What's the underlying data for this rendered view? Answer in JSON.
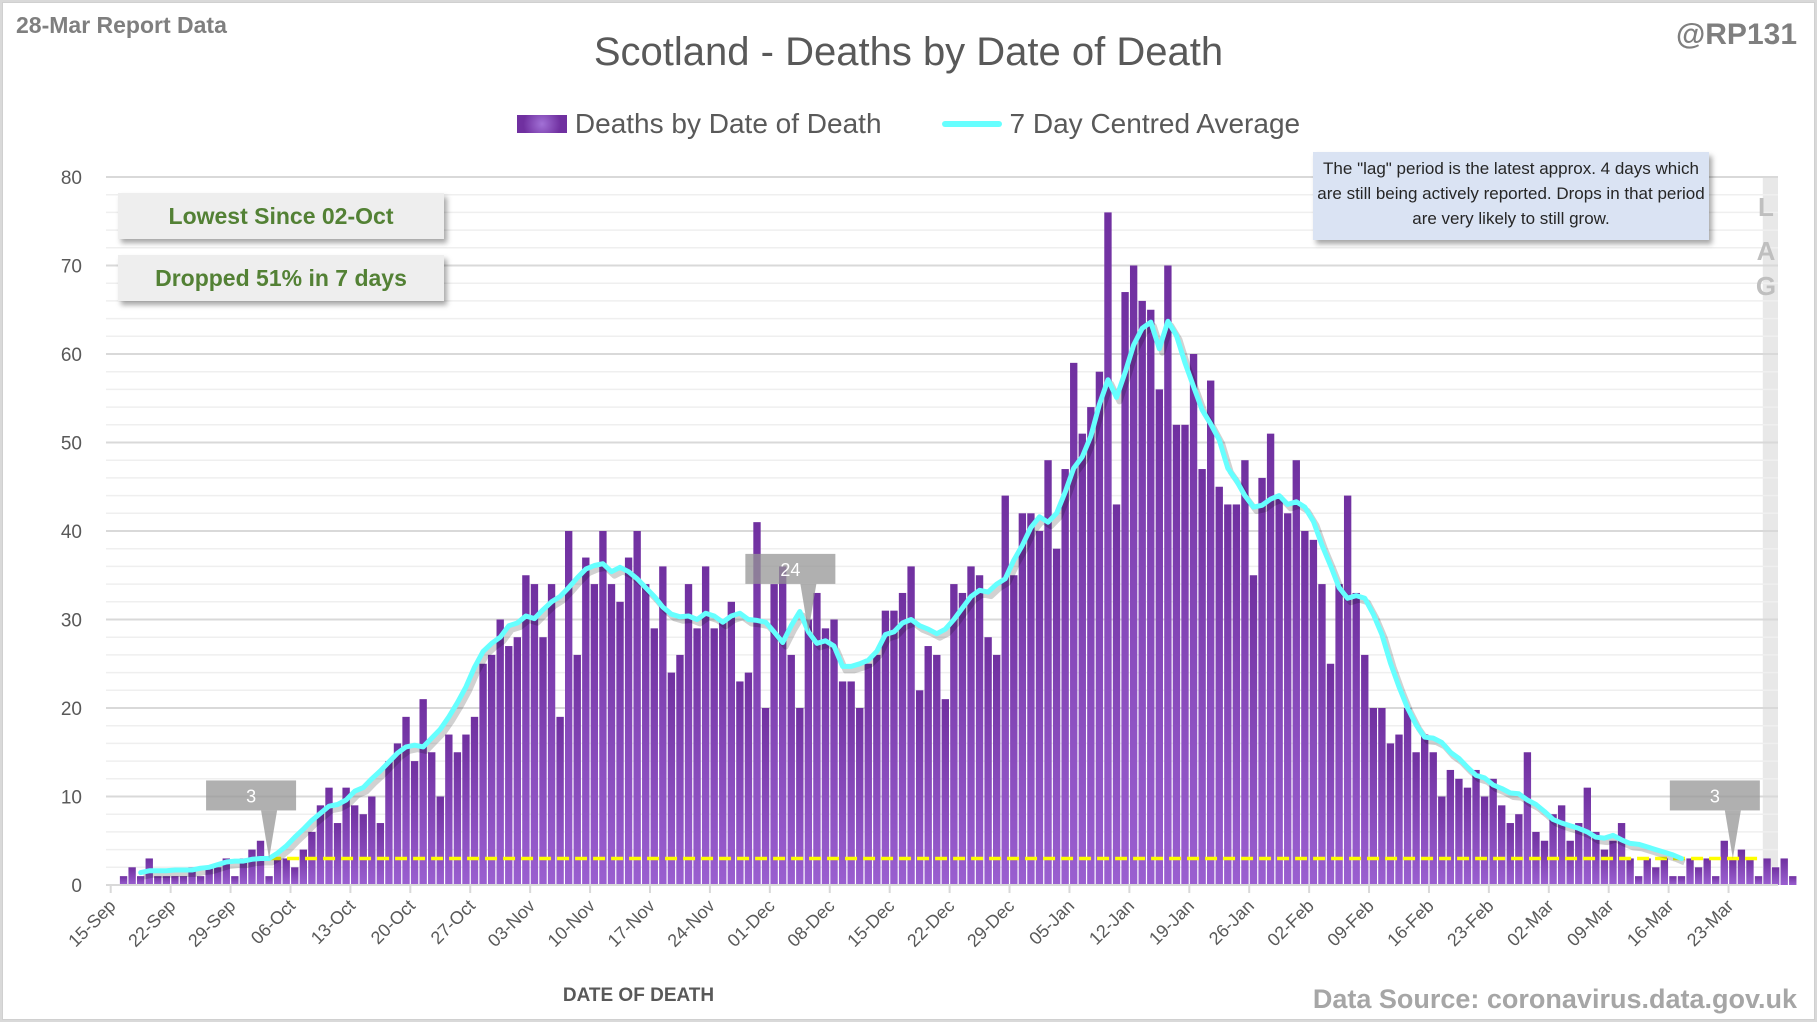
{
  "header": {
    "report_label": "28-Mar Report Data",
    "handle": "@RP131",
    "source": "Data Source: coronavirus.data.gov.uk"
  },
  "callouts": {
    "lowest": "Lowest Since 02-Oct",
    "dropped": "Dropped 51% in 7 days"
  },
  "lag": {
    "note": "The \"lag\" period is the latest approx. 4 days which are still being actively reported.  Drops in that period are very likely to still grow.",
    "letters": [
      "L",
      "A",
      "G"
    ]
  },
  "markers": [
    {
      "label": "3",
      "date_index": 18
    },
    {
      "label": "24",
      "date_index": 81
    },
    {
      "label": "3",
      "date_index": 189
    }
  ],
  "colors": {
    "bar": "#7030a0",
    "bar_light": "#9a5fd0",
    "line": "#66ffff",
    "threshold": "#ffff00",
    "lag_band": "#e8e8e8",
    "callout_text": "#538135"
  },
  "chart_data": {
    "type": "bar",
    "title": "Scotland - Deaths by Date of Death",
    "xlabel": "DATE OF DEATH",
    "ylabel": "",
    "ylim": [
      0,
      80
    ],
    "yticks": [
      0,
      10,
      20,
      30,
      40,
      50,
      60,
      70,
      80
    ],
    "grid": true,
    "legend_position": "top",
    "start_date": "15-Sep",
    "xtick_labels": [
      "15-Sep",
      "22-Sep",
      "29-Sep",
      "06-Oct",
      "13-Oct",
      "20-Oct",
      "27-Oct",
      "03-Nov",
      "10-Nov",
      "17-Nov",
      "24-Nov",
      "01-Dec",
      "08-Dec",
      "15-Dec",
      "22-Dec",
      "29-Dec",
      "05-Jan",
      "12-Jan",
      "19-Jan",
      "26-Jan",
      "02-Feb",
      "09-Feb",
      "16-Feb",
      "23-Feb",
      "02-Mar",
      "09-Mar",
      "16-Mar",
      "23-Mar"
    ],
    "threshold": 3,
    "lag_days": 4,
    "series": [
      {
        "name": "Deaths by Date of Death",
        "type": "bar",
        "values": [
          0,
          1,
          2,
          1,
          3,
          1,
          1,
          1,
          1,
          2,
          1,
          2,
          2,
          3,
          1,
          3,
          4,
          5,
          1,
          3,
          3,
          2,
          4,
          6,
          9,
          11,
          7,
          11,
          9,
          8,
          10,
          7,
          14,
          16,
          19,
          14,
          21,
          15,
          10,
          17,
          15,
          17,
          19,
          25,
          26,
          30,
          27,
          28,
          35,
          34,
          28,
          34,
          19,
          40,
          26,
          37,
          34,
          40,
          34,
          32,
          37,
          40,
          34,
          29,
          36,
          24,
          26,
          34,
          29,
          36,
          29,
          30,
          32,
          23,
          24,
          41,
          20,
          34,
          36,
          26,
          20,
          30,
          33,
          29,
          30,
          23,
          23,
          20,
          25,
          26,
          31,
          31,
          33,
          36,
          22,
          27,
          26,
          21,
          34,
          33,
          36,
          35,
          28,
          26,
          44,
          35,
          42,
          42,
          40,
          48,
          38,
          47,
          59,
          51,
          54,
          58,
          76,
          43,
          67,
          70,
          66,
          65,
          56,
          70,
          52,
          52,
          60,
          47,
          57,
          45,
          43,
          43,
          48,
          35,
          46,
          51,
          44,
          42,
          48,
          40,
          39,
          34,
          25,
          34,
          44,
          33,
          26,
          20,
          20,
          16,
          17,
          20,
          15,
          17,
          15,
          10,
          13,
          12,
          11,
          13,
          10,
          12,
          9,
          7,
          8,
          15,
          6,
          5,
          8,
          9,
          5,
          7,
          11,
          6,
          4,
          5,
          7,
          3,
          1,
          3,
          2,
          3,
          1,
          1,
          3,
          2,
          3,
          1,
          5,
          3,
          4,
          3,
          1,
          3,
          2,
          3,
          1
        ]
      },
      {
        "name": "7 Day Centred Average",
        "type": "line",
        "values": [
          null,
          null,
          null,
          1.4,
          1.6,
          1.6,
          1.6,
          1.7,
          1.7,
          1.7,
          1.9,
          2.0,
          2.3,
          2.6,
          2.7,
          2.7,
          2.9,
          3.0,
          3.0,
          3.6,
          4.4,
          5.4,
          6.3,
          7.3,
          8.1,
          8.9,
          9.1,
          9.6,
          10.6,
          11.0,
          12.0,
          12.9,
          13.9,
          14.9,
          15.6,
          15.8,
          15.6,
          16.6,
          17.6,
          19.0,
          20.6,
          22.4,
          24.6,
          26.4,
          27.3,
          28.0,
          29.3,
          29.6,
          30.4,
          30.1,
          31.1,
          32.0,
          32.6,
          33.6,
          34.7,
          35.7,
          36.1,
          36.3,
          35.4,
          35.9,
          35.4,
          34.6,
          33.6,
          32.6,
          31.4,
          30.6,
          30.3,
          30.4,
          30.0,
          30.7,
          30.4,
          29.7,
          30.4,
          30.7,
          30.0,
          29.9,
          29.7,
          28.6,
          27.4,
          29.3,
          30.9,
          28.6,
          27.3,
          27.6,
          27.0,
          24.7,
          24.7,
          25.0,
          25.4,
          26.4,
          28.3,
          28.6,
          29.6,
          30.0,
          29.3,
          28.9,
          28.4,
          28.9,
          30.0,
          31.3,
          32.6,
          33.3,
          33.1,
          34.0,
          34.6,
          36.7,
          38.4,
          40.4,
          41.6,
          41.0,
          42.0,
          44.4,
          47.1,
          48.4,
          50.7,
          54.3,
          57.1,
          55.1,
          57.9,
          61.0,
          62.9,
          63.6,
          60.6,
          63.7,
          62.1,
          59.0,
          56.3,
          53.7,
          52.1,
          50.3,
          47.1,
          45.7,
          44.0,
          42.7,
          42.9,
          43.6,
          44.0,
          43.0,
          43.3,
          42.7,
          41.1,
          38.4,
          36.1,
          33.6,
          32.4,
          32.7,
          32.4,
          30.6,
          28.3,
          25.1,
          22.4,
          20.0,
          18.1,
          16.7,
          16.6,
          16.1,
          15.0,
          14.3,
          13.3,
          12.4,
          12.1,
          11.3,
          10.9,
          10.4,
          10.3,
          9.6,
          9.1,
          8.3,
          7.4,
          7.0,
          6.7,
          6.4,
          6.0,
          5.4,
          5.3,
          5.6,
          5.1,
          4.7,
          4.6,
          4.3,
          4.0,
          3.7,
          3.4,
          3.0,
          null,
          null,
          null,
          null,
          null,
          null
        ]
      }
    ]
  }
}
